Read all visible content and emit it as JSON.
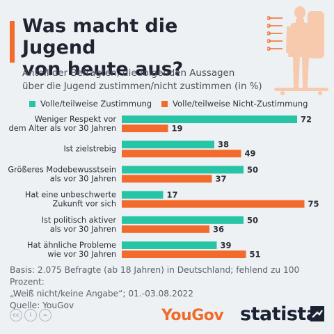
{
  "header": {
    "title_line1": "Was macht die Jugend",
    "title_line2": "von heute aus?",
    "subtitle_line1": "Anteil der Befragten, die folgenden Aussagen",
    "subtitle_line2": "über die Jugend zustimmen/nicht zustimmen (in %)"
  },
  "colors": {
    "accent": "#f26b2d",
    "teal": "#27c4a6",
    "orange": "#f26b2d",
    "illustration": "#f7c9ad"
  },
  "chart_data": {
    "type": "bar",
    "orientation": "horizontal",
    "categories": [
      [
        "Weniger Respekt vor",
        "dem Alter als vor 30 Jahren"
      ],
      [
        "Ist zielstrebig"
      ],
      [
        "Größeres Modebewusstsein",
        "als vor 30 Jahren"
      ],
      [
        "Hat eine unbeschwerte",
        "Zukunft vor sich"
      ],
      [
        "Ist politisch aktiver",
        "als vor 30 Jahren"
      ],
      [
        "Hat ähnliche Probleme",
        "wie vor 30 Jahren"
      ]
    ],
    "series": [
      {
        "name": "Volle/teilweise Zustimmung",
        "color": "#27c4a6",
        "values": [
          72,
          38,
          50,
          17,
          50,
          39
        ]
      },
      {
        "name": "Volle/teilweise Nicht-Zustimmung",
        "color": "#f26b2d",
        "values": [
          19,
          49,
          37,
          75,
          36,
          51
        ]
      }
    ],
    "xlim": [
      0,
      100
    ],
    "legend_position": "top",
    "grid": false,
    "value_labels": true
  },
  "footer": {
    "basis_line1": "Basis: 2.075 Befragte (ab 18 Jahren) in Deutschland; fehlend zu 100 Prozent:",
    "basis_line2": "„Weiß nicht/keine Angabe“; 01.-03.08.2022",
    "source": "Quelle: YouGov",
    "yougov_logo": "YouGov",
    "statista_logo": "statista",
    "license_icons": [
      "cc",
      "i",
      "="
    ]
  }
}
